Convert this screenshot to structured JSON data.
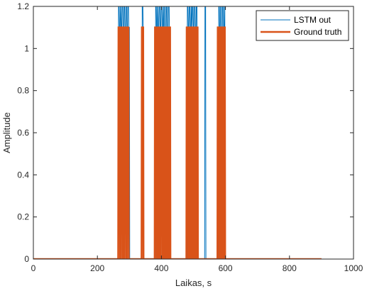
{
  "chart_data": {
    "type": "line",
    "title": "",
    "xlabel": "Laikas, s",
    "ylabel": "Amplitude",
    "xlim": [
      0,
      1000
    ],
    "ylim": [
      0,
      1.2
    ],
    "xticks": [
      0,
      200,
      400,
      600,
      800,
      1000
    ],
    "yticks": [
      0,
      0.2,
      0.4,
      0.6,
      0.8,
      1,
      1.2
    ],
    "xtick_labels": [
      "0",
      "200",
      "400",
      "600",
      "800",
      "1000"
    ],
    "ytick_labels": [
      "0",
      "0.2",
      "0.4",
      "0.6",
      "0.8",
      "1",
      "1.2"
    ],
    "grid": false,
    "legend_position": "top-right",
    "series": [
      {
        "name": "LSTM out",
        "color": "#0072BD",
        "style": "thin",
        "x": [
          0,
          265,
          266,
          268,
          269,
          271,
          272,
          273,
          274,
          276,
          277,
          279,
          280,
          282,
          283,
          285,
          286,
          288,
          289,
          291,
          292,
          294,
          295,
          297,
          298,
          300,
          301,
          339,
          340,
          342,
          343,
          344,
          345,
          381,
          382,
          384,
          385,
          387,
          388,
          389,
          390,
          392,
          393,
          395,
          396,
          398,
          399,
          401,
          402,
          404,
          405,
          406,
          407,
          409,
          410,
          412,
          413,
          415,
          416,
          418,
          419,
          421,
          422,
          424,
          425,
          428,
          429,
          480,
          481,
          483,
          484,
          486,
          487,
          489,
          490,
          492,
          493,
          494,
          495,
          496,
          497,
          499,
          500,
          502,
          503,
          505,
          506,
          508,
          509,
          511,
          512,
          535,
          536,
          538,
          539,
          578,
          579,
          581,
          582,
          584,
          585,
          587,
          588,
          590,
          591,
          593,
          594,
          596,
          597,
          598,
          599,
          900
        ],
        "y": [
          0,
          0,
          1.2,
          1.2,
          1.1,
          1.1,
          1.2,
          1.2,
          1.1,
          1.1,
          1.2,
          1.2,
          1.1,
          1.1,
          1.2,
          1.2,
          1.1,
          1.1,
          1.2,
          1.2,
          1.1,
          1.1,
          1.2,
          1.2,
          1.1,
          1.1,
          0,
          0,
          1.2,
          1.2,
          1.1,
          1.1,
          0,
          0,
          1.2,
          1.2,
          1.1,
          1.1,
          1.2,
          1.2,
          1.1,
          1.1,
          1.2,
          1.2,
          1.1,
          1.1,
          1.2,
          1.2,
          1.1,
          1.1,
          1.2,
          1.2,
          1.1,
          1.1,
          1.2,
          1.2,
          1.1,
          1.1,
          1.2,
          1.2,
          1.1,
          1.1,
          1.2,
          1.2,
          1.1,
          1.1,
          0,
          0,
          1.2,
          1.2,
          1.1,
          1.1,
          1.2,
          1.2,
          1.1,
          1.1,
          1.2,
          1.2,
          1.1,
          1.1,
          1.2,
          1.2,
          1.1,
          1.1,
          1.2,
          1.2,
          1.1,
          1.1,
          1.2,
          1.2,
          0,
          0,
          1.2,
          1.2,
          0,
          0,
          1.2,
          1.2,
          1.1,
          1.1,
          1.2,
          1.2,
          1.1,
          1.1,
          1.2,
          1.2,
          1.1,
          1.1,
          1.2,
          1.2,
          0,
          0
        ]
      },
      {
        "name": "Ground truth",
        "color": "#D95319",
        "style": "thick",
        "x": [
          0,
          265,
          266,
          270,
          271,
          272,
          273,
          277,
          278,
          279,
          280,
          283,
          284,
          285,
          286,
          290,
          291,
          292,
          293,
          297,
          298,
          299,
          300,
          338,
          339,
          343,
          344,
          379,
          380,
          384,
          385,
          386,
          387,
          390,
          391,
          392,
          393,
          396,
          397,
          398,
          399,
          403,
          404,
          405,
          406,
          409,
          410,
          411,
          412,
          415,
          416,
          417,
          418,
          421,
          422,
          423,
          424,
          427,
          428,
          478,
          479,
          483,
          484,
          485,
          486,
          489,
          490,
          491,
          492,
          495,
          496,
          497,
          498,
          501,
          502,
          503,
          504,
          507,
          508,
          509,
          510,
          513,
          514,
          575,
          576,
          580,
          581,
          582,
          583,
          586,
          587,
          588,
          589,
          592,
          593,
          594,
          595,
          598,
          599,
          900
        ],
        "y": [
          0,
          0,
          1.1,
          1.1,
          0,
          0,
          1.1,
          1.1,
          0,
          0,
          1.1,
          1.1,
          0,
          0,
          1.1,
          1.1,
          0,
          0,
          1.1,
          1.1,
          0,
          0,
          0,
          0,
          1.1,
          1.1,
          0,
          0,
          1.1,
          1.1,
          0,
          0,
          1.1,
          1.1,
          0,
          0,
          1.1,
          1.1,
          0,
          0,
          1.1,
          1.1,
          0,
          0,
          1.1,
          1.1,
          0,
          0,
          1.1,
          1.1,
          0,
          0,
          1.1,
          1.1,
          0,
          0,
          1.1,
          1.1,
          0,
          0,
          1.1,
          1.1,
          0,
          0,
          1.1,
          1.1,
          0,
          0,
          1.1,
          1.1,
          0,
          0,
          1.1,
          1.1,
          0,
          0,
          1.1,
          1.1,
          0,
          0,
          1.1,
          1.1,
          0,
          0,
          1.1,
          1.1,
          0,
          0,
          1.1,
          1.1,
          0,
          0,
          1.1,
          1.1,
          0,
          0,
          1.1,
          1.1,
          0,
          0
        ]
      }
    ]
  }
}
